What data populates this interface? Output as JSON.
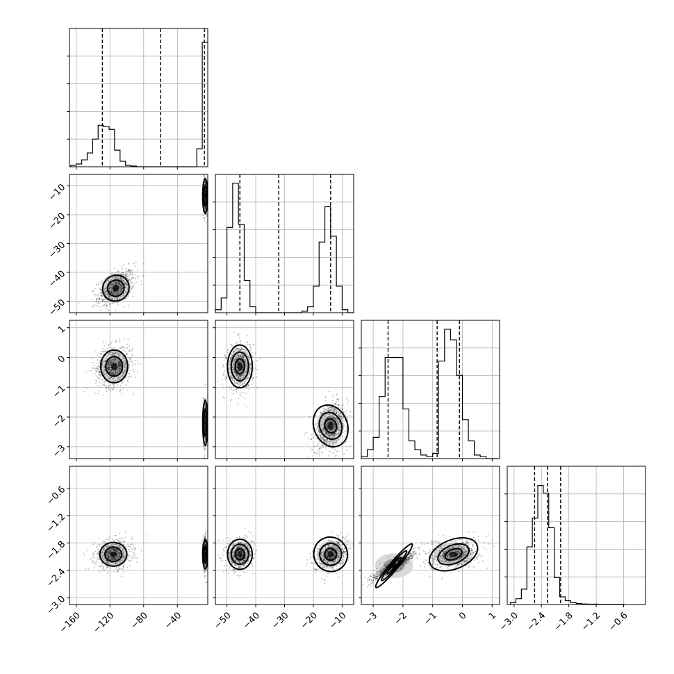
{
  "chart_data": {
    "type": "corner",
    "parameters": [
      {
        "id": "p0",
        "lim": [
          -168,
          -4
        ],
        "ticks": [
          -160,
          -120,
          -80,
          -40
        ],
        "tick_labels": [
          "−160",
          "−120",
          "−80",
          "−40"
        ]
      },
      {
        "id": "p1",
        "lim": [
          -54,
          -6
        ],
        "ticks": [
          -50,
          -40,
          -30,
          -20,
          -10
        ],
        "tick_labels": [
          "−50",
          "−40",
          "−30",
          "−20",
          "−10"
        ]
      },
      {
        "id": "p2",
        "lim": [
          -3.4,
          1.25
        ],
        "ticks": [
          -3,
          -2,
          -1,
          0,
          1
        ],
        "tick_labels": [
          "−3",
          "−2",
          "−1",
          "0",
          "1"
        ]
      },
      {
        "id": "p3",
        "lim": [
          -3.15,
          -0.12
        ],
        "ticks": [
          -3.0,
          -2.4,
          -1.8,
          -1.2,
          -0.6
        ],
        "tick_labels": [
          "−3.0",
          "−2.4",
          "−1.8",
          "−1.2",
          "−0.6"
        ]
      }
    ],
    "histograms": [
      {
        "param": 0,
        "bins": [
          -166.5,
          -160,
          -153.5,
          -147,
          -140.5,
          -134,
          -127.5,
          -121,
          -114.5,
          -108,
          -101.5,
          -95,
          -88.5,
          -82,
          -75.5,
          -69,
          -62.5,
          -56,
          -49.5,
          -43,
          -36.5,
          -30,
          -23.5,
          -17,
          -10.5,
          -4
        ],
        "counts": [
          0.01,
          0.02,
          0.05,
          0.1,
          0.2,
          0.3,
          0.29,
          0.27,
          0.12,
          0.04,
          0.01,
          0.005,
          0,
          0,
          0,
          0,
          0,
          0,
          0,
          0,
          0,
          0,
          0,
          0.13,
          0.9
        ],
        "ymax": 1.0,
        "quantiles": [
          -129,
          -60,
          -8
        ]
      },
      {
        "param": 1,
        "bins": [
          -54,
          -52,
          -50,
          -48,
          -46,
          -44,
          -42,
          -40,
          -38,
          -36,
          -34,
          -32,
          -30,
          -28,
          -26,
          -24,
          -22,
          -20,
          -18,
          -16,
          -14,
          -12,
          -10,
          -8,
          -6
        ],
        "counts": [
          0.02,
          0.1,
          0.58,
          0.88,
          0.6,
          0.22,
          0.04,
          0,
          0,
          0,
          0,
          0,
          0,
          0,
          0,
          0.01,
          0.04,
          0.18,
          0.48,
          0.72,
          0.52,
          0.18,
          0.02,
          0
        ],
        "ymax": 0.94,
        "quantiles": [
          -45.5,
          -32,
          -14
        ]
      },
      {
        "param": 2,
        "bins": [
          -3.4,
          -3.2,
          -3.0,
          -2.8,
          -2.6,
          -2.4,
          -2.2,
          -2.0,
          -1.8,
          -1.6,
          -1.4,
          -1.2,
          -1.0,
          -0.8,
          -0.6,
          -0.4,
          -0.2,
          0.0,
          0.2,
          0.4,
          0.6,
          0.8,
          1.0,
          1.2
        ],
        "counts": [
          0.01,
          0.05,
          0.12,
          0.35,
          0.57,
          0.57,
          0.57,
          0.28,
          0.1,
          0.05,
          0.02,
          0.01,
          0.03,
          0.55,
          0.73,
          0.67,
          0.47,
          0.22,
          0.1,
          0.02,
          0.01,
          0,
          0
        ],
        "ymax": 0.78,
        "quantiles": [
          -2.5,
          -0.85,
          -0.1
        ]
      },
      {
        "param": 3,
        "bins": [
          -3.08,
          -2.96,
          -2.84,
          -2.72,
          -2.6,
          -2.48,
          -2.36,
          -2.24,
          -2.12,
          -2.0,
          -1.88,
          -1.76,
          -1.64,
          -1.52,
          -1.4,
          -1.28,
          -1.16,
          -1.04,
          -0.92,
          -0.8,
          -0.68,
          -0.56
        ],
        "counts": [
          0.01,
          0.03,
          0.08,
          0.3,
          0.45,
          0.62,
          0.58,
          0.4,
          0.14,
          0.04,
          0.02,
          0.01,
          0.005,
          0.003,
          0.002,
          0.002,
          0.001,
          0.001,
          0.001,
          0.001,
          0.001
        ],
        "ymax": 0.72,
        "quantiles": [
          -2.55,
          -2.27,
          -1.98
        ]
      }
    ],
    "joint_panels": [
      {
        "x": 0,
        "y": 1,
        "clusters": [
          {
            "cx": -113,
            "cy": -45.5,
            "sx": 11,
            "sy": 3.2,
            "rho": 0.5,
            "n": 700
          },
          {
            "cx": -7,
            "cy": -13.5,
            "sx": 1.2,
            "sy": 3.5,
            "rho": 0,
            "n": 350
          }
        ],
        "contours": [
          {
            "cx": -113,
            "cy": -45.5,
            "rx": 16,
            "ry": 4.4,
            "rot": 0.35
          },
          {
            "cx": -113,
            "cy": -45.5,
            "rx": 10,
            "ry": 2.8,
            "rot": 0.35
          },
          {
            "cx": -7,
            "cy": -13.5,
            "rx": 3,
            "ry": 6,
            "rot": 0
          },
          {
            "cx": -7,
            "cy": -13.5,
            "rx": 1.8,
            "ry": 3.5,
            "rot": 0
          }
        ]
      },
      {
        "x": 0,
        "y": 2,
        "clusters": [
          {
            "cx": -115,
            "cy": -0.3,
            "sx": 11,
            "sy": 0.35,
            "rho": 0.1,
            "n": 700
          },
          {
            "cx": -7,
            "cy": -2.2,
            "sx": 1.2,
            "sy": 0.45,
            "rho": 0,
            "n": 350
          }
        ],
        "contours": [
          {
            "cx": -115,
            "cy": -0.3,
            "rx": 16,
            "ry": 0.55,
            "rot": 0
          },
          {
            "cx": -115,
            "cy": -0.3,
            "rx": 10,
            "ry": 0.33,
            "rot": 0
          },
          {
            "cx": -7,
            "cy": -2.2,
            "rx": 3,
            "ry": 0.75,
            "rot": 0
          },
          {
            "cx": -7,
            "cy": -2.2,
            "rx": 1.8,
            "ry": 0.45,
            "rot": 0
          }
        ]
      },
      {
        "x": 0,
        "y": 3,
        "clusters": [
          {
            "cx": -116,
            "cy": -2.05,
            "sx": 11,
            "sy": 0.16,
            "rho": 0.1,
            "n": 700
          },
          {
            "cx": -7,
            "cy": -2.05,
            "sx": 1.2,
            "sy": 0.18,
            "rho": 0,
            "n": 350
          }
        ],
        "contours": [
          {
            "cx": -116,
            "cy": -2.05,
            "rx": 16,
            "ry": 0.26,
            "rot": 0
          },
          {
            "cx": -116,
            "cy": -2.05,
            "rx": 10,
            "ry": 0.16,
            "rot": 0
          },
          {
            "cx": -7,
            "cy": -2.05,
            "rx": 3,
            "ry": 0.32,
            "rot": 0
          },
          {
            "cx": -7,
            "cy": -2.05,
            "rx": 1.8,
            "ry": 0.18,
            "rot": 0
          }
        ]
      },
      {
        "x": 1,
        "y": 2,
        "clusters": [
          {
            "cx": -45.5,
            "cy": -0.3,
            "sx": 2.3,
            "sy": 0.4,
            "rho": 0.1,
            "n": 650
          },
          {
            "cx": -14,
            "cy": -2.3,
            "sx": 2.9,
            "sy": 0.4,
            "rho": 0.3,
            "n": 650
          }
        ],
        "contours": [
          {
            "cx": -45.5,
            "cy": -0.3,
            "rx": 4.3,
            "ry": 0.72,
            "rot": 0
          },
          {
            "cx": -45.5,
            "cy": -0.3,
            "rx": 3.0,
            "ry": 0.48,
            "rot": 0
          },
          {
            "cx": -45.5,
            "cy": -0.3,
            "rx": 1.6,
            "ry": 0.25,
            "rot": 0
          },
          {
            "cx": -14,
            "cy": -2.3,
            "rx": 5.8,
            "ry": 0.72,
            "rot": 0.2
          },
          {
            "cx": -14,
            "cy": -2.3,
            "rx": 3.8,
            "ry": 0.46,
            "rot": 0.2
          },
          {
            "cx": -14,
            "cy": -2.3,
            "rx": 2.0,
            "ry": 0.24,
            "rot": 0.2
          }
        ]
      },
      {
        "x": 1,
        "y": 3,
        "clusters": [
          {
            "cx": -45.5,
            "cy": -2.05,
            "sx": 2.3,
            "sy": 0.17,
            "rho": 0.1,
            "n": 650
          },
          {
            "cx": -14,
            "cy": -2.05,
            "sx": 2.9,
            "sy": 0.18,
            "rho": 0.4,
            "n": 650
          }
        ],
        "contours": [
          {
            "cx": -45.5,
            "cy": -2.05,
            "rx": 4.3,
            "ry": 0.33,
            "rot": 0
          },
          {
            "cx": -45.5,
            "cy": -2.05,
            "rx": 3.0,
            "ry": 0.22,
            "rot": 0
          },
          {
            "cx": -45.5,
            "cy": -2.05,
            "rx": 1.6,
            "ry": 0.12,
            "rot": 0
          },
          {
            "cx": -14,
            "cy": -2.05,
            "rx": 5.8,
            "ry": 0.38,
            "rot": 0.25
          },
          {
            "cx": -14,
            "cy": -2.05,
            "rx": 3.8,
            "ry": 0.24,
            "rot": 0.25
          },
          {
            "cx": -14,
            "cy": -2.05,
            "rx": 2.0,
            "ry": 0.13,
            "rot": 0.25
          }
        ]
      },
      {
        "x": 2,
        "y": 3,
        "clusters": [
          {
            "cx": -2.3,
            "cy": -2.3,
            "sx": 0.4,
            "sy": 0.17,
            "rho": 0.92,
            "n": 650
          },
          {
            "cx": -0.3,
            "cy": -2.05,
            "sx": 0.42,
            "sy": 0.16,
            "rho": 0.3,
            "n": 650
          }
        ],
        "contours": [
          {
            "cx": -2.3,
            "cy": -2.3,
            "rx": 0.95,
            "ry": 0.09,
            "rot": 0.6
          },
          {
            "cx": -2.3,
            "cy": -2.3,
            "rx": 0.65,
            "ry": 0.06,
            "rot": 0.6
          },
          {
            "cx": -2.3,
            "cy": -2.3,
            "rx": 0.35,
            "ry": 0.035,
            "rot": 0.6
          },
          {
            "cx": -0.3,
            "cy": -2.05,
            "rx": 0.85,
            "ry": 0.32,
            "rot": 0.2
          },
          {
            "cx": -0.3,
            "cy": -2.05,
            "rx": 0.55,
            "ry": 0.2,
            "rot": 0.2
          },
          {
            "cx": -0.3,
            "cy": -2.05,
            "rx": 0.3,
            "ry": 0.11,
            "rot": 0.2
          }
        ]
      }
    ],
    "grid": true
  }
}
